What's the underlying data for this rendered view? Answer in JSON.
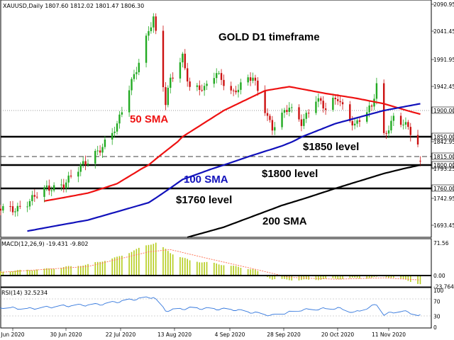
{
  "chart_header": "XAUUSD,Daily  1807.60 1812.02 1801.47 1806.30",
  "title": "GOLD D1 timeframe",
  "macd_label": "MACD(12,26,9) -19.431 -9.802",
  "rsi_label": "RSI(14) 32.5234",
  "colors": {
    "bull": "#22aa22",
    "bear": "#cc1111",
    "sma50": "#ee1111",
    "sma100": "#1111bb",
    "sma200": "#000000",
    "macd_hist": "#b4cc1a",
    "macd_signal": "#ff6a4a",
    "rsi_line": "#3377dd"
  },
  "annotations": {
    "sma50": "50 SMA",
    "sma100": "100 SMA",
    "sma200": "200 SMA",
    "level1850": "$1850 level",
    "level1800": "$1800 level",
    "level1760": "$1760 level"
  },
  "chart_data": [
    {
      "type": "candlestick",
      "title": "GOLD D1 timeframe",
      "symbol": "XAUUSD",
      "timeframe": "Daily",
      "x_ticks": [
        "Jun 2020",
        "30 Jun 2020",
        "22 Jul 2020",
        "13 Aug 2020",
        "4 Sep 2020",
        "28 Sep 2020",
        "20 Oct 2020",
        "11 Nov 2020"
      ],
      "y_ticks": [
        "2090.95",
        "2041.45",
        "1991.95",
        "1942.45",
        "1900.00",
        "1850.00",
        "1842.95",
        "1815.00",
        "1800.00",
        "1793.25",
        "1760.00",
        "1742.95",
        "1693.45"
      ],
      "ylim": [
        1672,
        2100
      ],
      "grid": false,
      "ohlc_anchors": [
        {
          "date": "2020-06-09",
          "close": 1722
        },
        {
          "date": "2020-06-22",
          "close": 1755
        },
        {
          "date": "2020-06-30",
          "close": 1770
        },
        {
          "date": "2020-07-10",
          "close": 1805
        },
        {
          "date": "2020-07-22",
          "close": 1870
        },
        {
          "date": "2020-07-28",
          "close": 1950
        },
        {
          "date": "2020-08-04",
          "close": 2045
        },
        {
          "date": "2020-08-06",
          "close": 2065
        },
        {
          "date": "2020-08-11",
          "close": 1910
        },
        {
          "date": "2020-08-13",
          "close": 1955
        },
        {
          "date": "2020-08-18",
          "close": 2000
        },
        {
          "date": "2020-08-21",
          "close": 1940
        },
        {
          "date": "2020-08-27",
          "close": 1935
        },
        {
          "date": "2020-09-01",
          "close": 1970
        },
        {
          "date": "2020-09-08",
          "close": 1930
        },
        {
          "date": "2020-09-16",
          "close": 1960
        },
        {
          "date": "2020-09-21",
          "close": 1905
        },
        {
          "date": "2020-09-24",
          "close": 1865
        },
        {
          "date": "2020-10-01",
          "close": 1905
        },
        {
          "date": "2020-10-06",
          "close": 1880
        },
        {
          "date": "2020-10-12",
          "close": 1920
        },
        {
          "date": "2020-10-16",
          "close": 1900
        },
        {
          "date": "2020-10-21",
          "close": 1925
        },
        {
          "date": "2020-10-28",
          "close": 1870
        },
        {
          "date": "2020-11-04",
          "close": 1905
        },
        {
          "date": "2020-11-06",
          "close": 1950
        },
        {
          "date": "2020-11-09",
          "close": 1855
        },
        {
          "date": "2020-11-13",
          "close": 1885
        },
        {
          "date": "2020-11-19",
          "close": 1865
        },
        {
          "date": "2020-11-23",
          "close": 1838
        },
        {
          "date": "2020-11-24",
          "close": 1806
        }
      ],
      "horizontal_levels": [
        {
          "value": 1900,
          "style": "dotted"
        },
        {
          "value": 1850,
          "style": "solid"
        },
        {
          "value": 1815,
          "style": "dashed"
        },
        {
          "value": 1800,
          "style": "solid"
        },
        {
          "value": 1760,
          "style": "solid"
        }
      ],
      "series": [
        {
          "name": "50 SMA",
          "anchors": [
            {
              "date": "2020-06-22",
              "value": 1738
            },
            {
              "date": "2020-07-10",
              "value": 1752
            },
            {
              "date": "2020-07-22",
              "value": 1768
            },
            {
              "date": "2020-08-04",
              "value": 1800
            },
            {
              "date": "2020-08-18",
              "value": 1850
            },
            {
              "date": "2020-09-04",
              "value": 1900
            },
            {
              "date": "2020-09-21",
              "value": 1935
            },
            {
              "date": "2020-10-01",
              "value": 1942
            },
            {
              "date": "2020-10-16",
              "value": 1930
            },
            {
              "date": "2020-10-28",
              "value": 1922
            },
            {
              "date": "2020-11-09",
              "value": 1912
            },
            {
              "date": "2020-11-24",
              "value": 1893
            }
          ]
        },
        {
          "name": "100 SMA",
          "anchors": [
            {
              "date": "2020-06-15",
              "value": 1683
            },
            {
              "date": "2020-07-10",
              "value": 1703
            },
            {
              "date": "2020-08-04",
              "value": 1735
            },
            {
              "date": "2020-08-18",
              "value": 1775
            },
            {
              "date": "2020-09-04",
              "value": 1800
            },
            {
              "date": "2020-09-28",
              "value": 1835
            },
            {
              "date": "2020-10-20",
              "value": 1875
            },
            {
              "date": "2020-11-09",
              "value": 1900
            },
            {
              "date": "2020-11-24",
              "value": 1912
            }
          ]
        },
        {
          "name": "200 SMA",
          "anchors": [
            {
              "date": "2020-08-20",
              "value": 1672
            },
            {
              "date": "2020-09-04",
              "value": 1690
            },
            {
              "date": "2020-09-28",
              "value": 1730
            },
            {
              "date": "2020-10-20",
              "value": 1760
            },
            {
              "date": "2020-11-09",
              "value": 1785
            },
            {
              "date": "2020-11-24",
              "value": 1800
            }
          ]
        }
      ]
    },
    {
      "type": "bar",
      "title": "MACD(12,26,9) -19.431 -9.802",
      "ticks": [
        "71.56",
        "0.00",
        "-23.764"
      ],
      "ylim": [
        -23.764,
        71.56
      ],
      "histogram_anchors": [
        {
          "date": "2020-06-01",
          "value": 8
        },
        {
          "date": "2020-06-22",
          "value": 14
        },
        {
          "date": "2020-07-10",
          "value": 24
        },
        {
          "date": "2020-07-22",
          "value": 40
        },
        {
          "date": "2020-08-04",
          "value": 68
        },
        {
          "date": "2020-08-07",
          "value": 72
        },
        {
          "date": "2020-08-13",
          "value": 50
        },
        {
          "date": "2020-08-21",
          "value": 33
        },
        {
          "date": "2020-09-01",
          "value": 26
        },
        {
          "date": "2020-09-16",
          "value": 14
        },
        {
          "date": "2020-09-24",
          "value": -8
        },
        {
          "date": "2020-10-06",
          "value": -10
        },
        {
          "date": "2020-10-20",
          "value": -7
        },
        {
          "date": "2020-11-04",
          "value": -5
        },
        {
          "date": "2020-11-09",
          "value": -2
        },
        {
          "date": "2020-11-18",
          "value": -9
        },
        {
          "date": "2020-11-24",
          "value": -19.431
        }
      ],
      "signal_anchors": [
        {
          "date": "2020-06-01",
          "value": 6
        },
        {
          "date": "2020-07-10",
          "value": 20
        },
        {
          "date": "2020-08-04",
          "value": 52
        },
        {
          "date": "2020-08-13",
          "value": 57
        },
        {
          "date": "2020-08-28",
          "value": 38
        },
        {
          "date": "2020-09-16",
          "value": 15
        },
        {
          "date": "2020-10-01",
          "value": -4
        },
        {
          "date": "2020-10-20",
          "value": -8
        },
        {
          "date": "2020-11-09",
          "value": -5
        },
        {
          "date": "2020-11-24",
          "value": -9.802
        }
      ]
    },
    {
      "type": "line",
      "title": "RSI(14) 32.5234",
      "ticks": [
        "100",
        "70",
        "30",
        "0"
      ],
      "ylim": [
        0,
        100
      ],
      "anchors": [
        {
          "date": "2020-06-01",
          "value": 55
        },
        {
          "date": "2020-06-15",
          "value": 50
        },
        {
          "date": "2020-06-30",
          "value": 58
        },
        {
          "date": "2020-07-15",
          "value": 62
        },
        {
          "date": "2020-07-28",
          "value": 75
        },
        {
          "date": "2020-08-06",
          "value": 82
        },
        {
          "date": "2020-08-11",
          "value": 45
        },
        {
          "date": "2020-08-21",
          "value": 52
        },
        {
          "date": "2020-09-08",
          "value": 48
        },
        {
          "date": "2020-09-24",
          "value": 32
        },
        {
          "date": "2020-10-06",
          "value": 47
        },
        {
          "date": "2020-10-21",
          "value": 52
        },
        {
          "date": "2020-10-28",
          "value": 40
        },
        {
          "date": "2020-11-06",
          "value": 62
        },
        {
          "date": "2020-11-09",
          "value": 35
        },
        {
          "date": "2020-11-16",
          "value": 45
        },
        {
          "date": "2020-11-24",
          "value": 32.5234
        }
      ]
    }
  ]
}
